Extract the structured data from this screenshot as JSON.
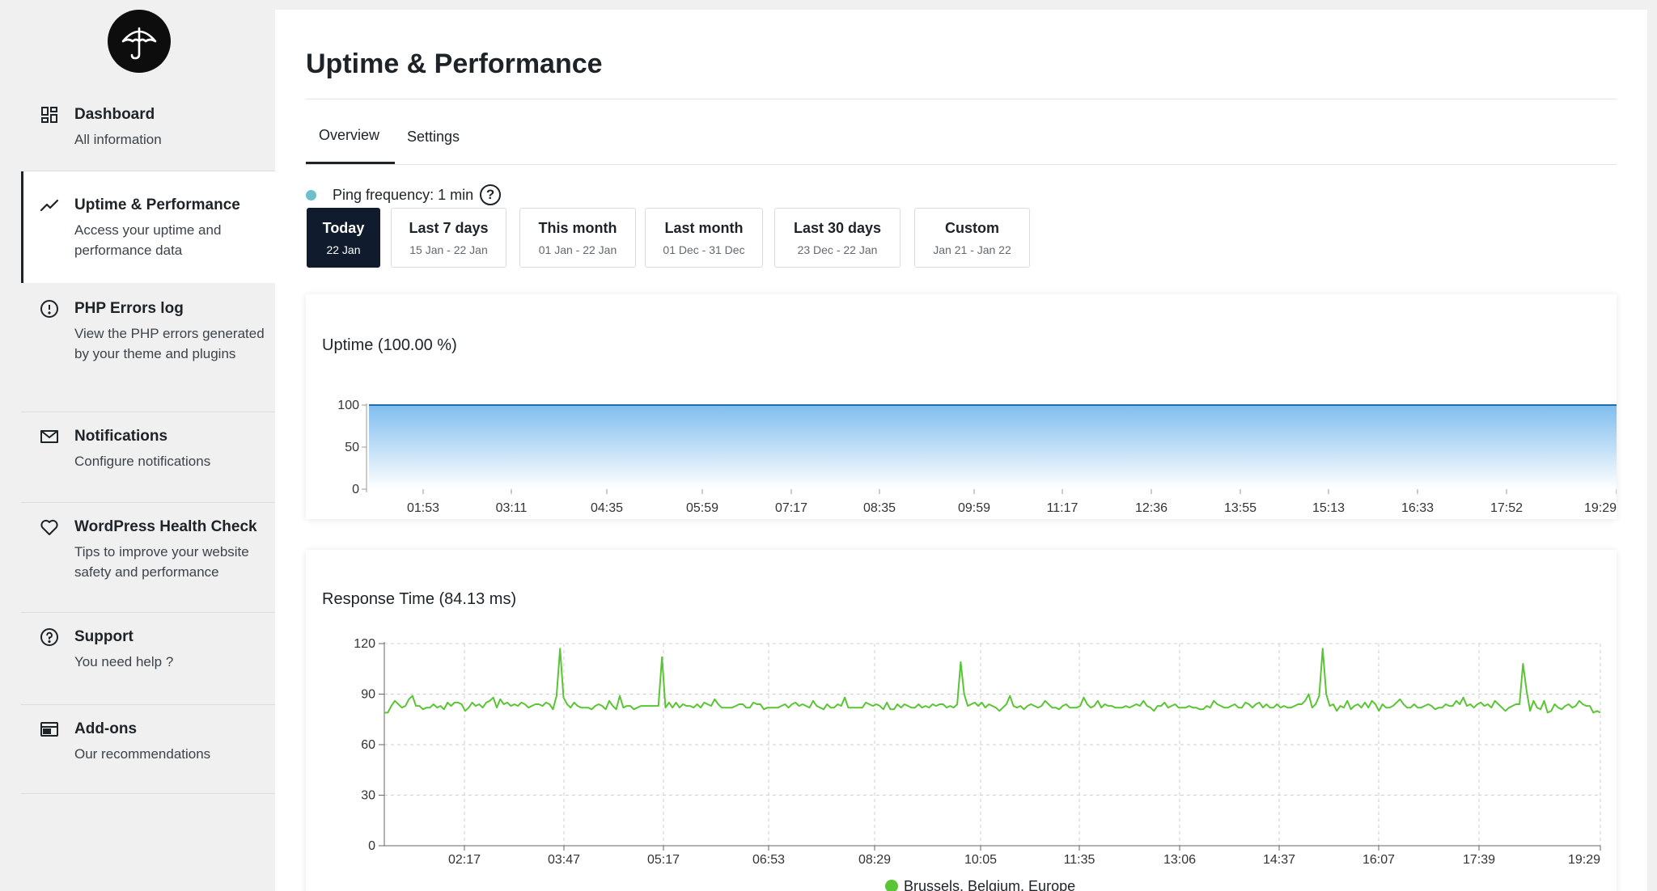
{
  "sidebar": {
    "items": [
      {
        "title": "Dashboard",
        "desc": "All information",
        "icon": "dashboard-icon"
      },
      {
        "title": "Uptime & Performance",
        "desc": "Access your uptime and performance data",
        "icon": "trend-line-icon"
      },
      {
        "title": "PHP Errors log",
        "desc": "View the PHP errors generated by your theme and plugins",
        "icon": "alert-circle-icon"
      },
      {
        "title": "Notifications",
        "desc": "Configure notifications",
        "icon": "envelope-icon"
      },
      {
        "title": "WordPress Health Check",
        "desc": "Tips to improve your website safety and performance",
        "icon": "heart-icon"
      },
      {
        "title": "Support",
        "desc": "You need help ?",
        "icon": "help-circle-icon"
      },
      {
        "title": "Add-ons",
        "desc": "Our recommendations",
        "icon": "add-ons-icon"
      }
    ],
    "active_index": 1
  },
  "header": {
    "title": "Uptime & Performance"
  },
  "tabs": [
    {
      "label": "Overview",
      "active": true
    },
    {
      "label": "Settings",
      "active": false
    }
  ],
  "ping": {
    "label": "Ping frequency: 1 min",
    "help_glyph": "?",
    "dot_color": "#6dbfcc"
  },
  "ranges": [
    {
      "label": "Today",
      "sub": "22 Jan",
      "active": true
    },
    {
      "label": "Last 7 days",
      "sub": "15 Jan - 22 Jan",
      "active": false
    },
    {
      "label": "This month",
      "sub": "01 Jan - 22 Jan",
      "active": false
    },
    {
      "label": "Last month",
      "sub": "01 Dec - 31 Dec",
      "active": false
    },
    {
      "label": "Last 30 days",
      "sub": "23 Dec - 22 Jan",
      "active": false
    },
    {
      "label": "Custom",
      "sub": "Jan 21 - Jan 22",
      "active": false
    }
  ],
  "colors": {
    "active_bg": "#101b2d",
    "uptime_fill": "#7fbdee",
    "uptime_line": "#1f6db3",
    "response_line": "#5ac534"
  },
  "chart_data": [
    {
      "type": "area",
      "title": "Uptime (100.00 %)",
      "x_ticks": [
        "01:53",
        "03:11",
        "04:35",
        "05:59",
        "07:17",
        "08:35",
        "09:59",
        "11:17",
        "12:36",
        "13:55",
        "15:13",
        "16:33",
        "17:52",
        "19:29"
      ],
      "y_ticks": [
        0,
        50,
        100
      ],
      "ylim": [
        0,
        100
      ],
      "grid": false,
      "series": [
        {
          "values": [
            100,
            100,
            100,
            100,
            100,
            100,
            100,
            100,
            100,
            100,
            100,
            100,
            100,
            100
          ]
        }
      ]
    },
    {
      "type": "line",
      "title": "Response Time (84.13 ms)",
      "x_ticks": [
        "02:17",
        "03:47",
        "05:17",
        "06:53",
        "08:29",
        "10:05",
        "11:35",
        "13:06",
        "14:37",
        "16:07",
        "17:39",
        "19:29"
      ],
      "y_ticks": [
        0,
        30,
        60,
        90,
        120
      ],
      "ylim": [
        0,
        120
      ],
      "grid": true,
      "legend": "bottom-center",
      "series": [
        {
          "name": "Brussels, Belgium, Europe",
          "values": [
            79,
            79,
            83,
            86,
            84,
            82,
            83,
            87,
            89,
            83,
            83,
            81,
            82,
            82,
            84,
            82,
            83,
            81,
            85,
            83,
            85,
            85,
            84,
            80,
            82,
            85,
            83,
            84,
            82,
            85,
            86,
            88,
            82,
            87,
            84,
            85,
            83,
            84,
            83,
            85,
            84,
            82,
            83,
            84,
            84,
            83,
            85,
            84,
            81,
            89,
            117,
            88,
            84,
            82,
            85,
            83,
            82,
            82,
            82,
            81,
            83,
            84,
            83,
            81,
            86,
            83,
            81,
            89,
            82,
            83,
            83,
            81,
            82,
            83,
            83,
            83,
            83,
            83,
            83,
            112,
            82,
            85,
            82,
            85,
            82,
            84,
            83,
            83,
            82,
            84,
            82,
            85,
            84,
            83,
            87,
            84,
            82,
            82,
            82,
            82,
            83,
            84,
            84,
            82,
            82,
            85,
            84,
            84,
            81,
            82,
            82,
            82,
            82,
            83,
            84,
            82,
            84,
            85,
            83,
            84,
            83,
            82,
            86,
            83,
            82,
            81,
            84,
            82,
            82,
            84,
            83,
            88,
            82,
            82,
            82,
            82,
            82,
            85,
            84,
            83,
            84,
            83,
            81,
            85,
            81,
            81,
            84,
            82,
            84,
            83,
            82,
            82,
            84,
            82,
            83,
            82,
            84,
            83,
            84,
            84,
            82,
            83,
            82,
            84,
            109,
            90,
            83,
            84,
            85,
            83,
            85,
            82,
            84,
            83,
            82,
            80,
            82,
            84,
            89,
            83,
            82,
            83,
            81,
            83,
            84,
            83,
            82,
            83,
            86,
            84,
            82,
            82,
            81,
            83,
            84,
            82,
            82,
            82,
            83,
            88,
            84,
            82,
            83,
            86,
            82,
            84,
            83,
            83,
            82,
            82,
            82,
            83,
            82,
            83,
            84,
            83,
            86,
            83,
            82,
            80,
            83,
            83,
            85,
            82,
            83,
            84,
            82,
            82,
            82,
            83,
            82,
            82,
            81,
            81,
            83,
            82,
            86,
            84,
            83,
            82,
            82,
            83,
            84,
            82,
            82,
            85,
            84,
            82,
            84,
            85,
            82,
            84,
            82,
            82,
            84,
            82,
            83,
            82,
            82,
            83,
            84,
            84,
            86,
            90,
            82,
            84,
            89,
            117,
            90,
            83,
            84,
            80,
            83,
            82,
            86,
            81,
            83,
            84,
            82,
            85,
            82,
            86,
            84,
            80,
            84,
            82,
            82,
            83,
            85,
            87,
            84,
            82,
            82,
            84,
            82,
            82,
            83,
            84,
            83,
            81,
            82,
            82,
            84,
            83,
            83,
            86,
            84,
            88,
            83,
            84,
            82,
            84,
            85,
            83,
            84,
            82,
            86,
            84,
            82,
            80,
            82,
            83,
            84,
            84,
            108,
            92,
            80,
            86,
            82,
            81,
            86,
            79,
            80,
            84,
            82,
            81,
            83,
            84,
            82,
            83,
            86,
            84,
            83,
            83,
            79,
            80,
            79
          ]
        }
      ]
    }
  ]
}
